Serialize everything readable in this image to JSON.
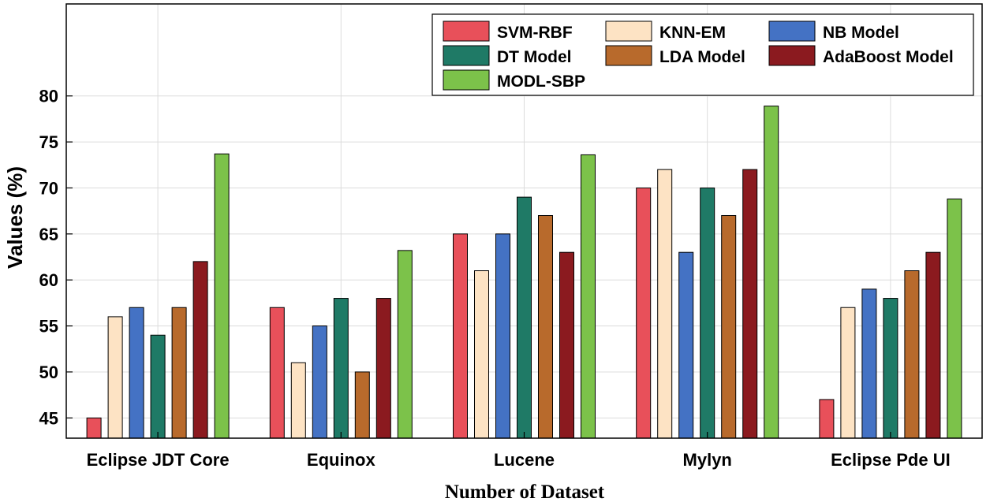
{
  "chart_data": {
    "type": "bar",
    "title": "",
    "xlabel": "Number of Dataset",
    "ylabel": "Values (%)",
    "ylim": [
      42.8,
      90
    ],
    "yticks": [
      45,
      50,
      55,
      60,
      65,
      70,
      75,
      80
    ],
    "grid": true,
    "legend_position": "top-right",
    "categories": [
      "Eclipse JDT Core",
      "Equinox",
      "Lucene",
      "Mylyn",
      "Eclipse Pde UI"
    ],
    "series": [
      {
        "name": "SVM-RBF",
        "color": "#e8505a",
        "values": [
          45,
          57,
          65,
          70,
          47
        ]
      },
      {
        "name": "KNN-EM",
        "color": "#fde3c4",
        "values": [
          56,
          51,
          61,
          72,
          57
        ]
      },
      {
        "name": "NB Model",
        "color": "#4472c4",
        "values": [
          57,
          55,
          65,
          63,
          59
        ]
      },
      {
        "name": "DT Model",
        "color": "#1f7a66",
        "values": [
          54,
          58,
          69,
          70,
          58
        ]
      },
      {
        "name": "LDA Model",
        "color": "#b86a2c",
        "values": [
          57,
          50,
          67,
          67,
          61
        ]
      },
      {
        "name": "AdaBoost Model",
        "color": "#8b1a1f",
        "values": [
          62,
          58,
          63,
          72,
          63
        ]
      },
      {
        "name": "MODL-SBP",
        "color": "#7cc24a",
        "values": [
          73.7,
          63.2,
          73.6,
          78.9,
          68.8
        ]
      }
    ]
  }
}
